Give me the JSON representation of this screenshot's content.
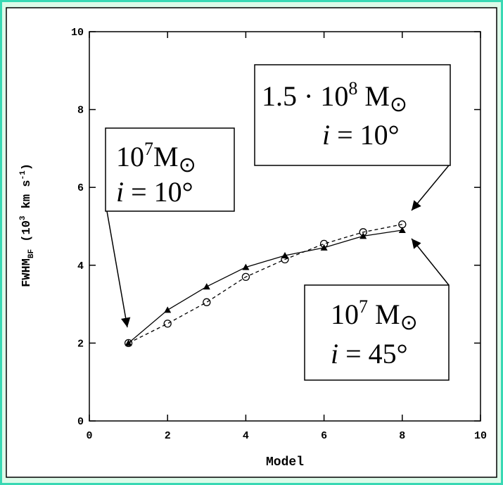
{
  "chart_data": {
    "type": "line",
    "xlabel": "Model",
    "ylabel_parts": [
      "FWHM",
      "BF",
      " (10",
      "3",
      " km s",
      "-1",
      ")"
    ],
    "xlim": [
      0,
      10
    ],
    "ylim": [
      0,
      10
    ],
    "xticks": [
      0,
      2,
      4,
      6,
      8,
      10
    ],
    "yticks": [
      0,
      2,
      4,
      6,
      8,
      10
    ],
    "series": [
      {
        "x": [
          1,
          2,
          3,
          4,
          5,
          6,
          7,
          8
        ],
        "values": [
          2.0,
          2.85,
          3.45,
          3.95,
          4.25,
          4.45,
          4.75,
          4.9
        ],
        "marker": "triangle",
        "dash": false,
        "color": "#000000"
      },
      {
        "x": [
          1,
          2,
          3,
          4,
          5,
          6,
          7,
          8
        ],
        "values": [
          2.0,
          2.5,
          3.05,
          3.7,
          4.15,
          4.55,
          4.85,
          5.05
        ],
        "marker": "circle",
        "dash": true,
        "color": "#000000"
      }
    ],
    "annotations": [
      {
        "lines": [
          [
            "10",
            "7",
            "M",
            "⊙"
          ],
          [
            "i",
            " = 10°"
          ]
        ]
      },
      {
        "lines": [
          [
            "1.5 · 10",
            "8",
            " M",
            "⊙"
          ],
          [
            "i",
            " = 10°"
          ]
        ]
      },
      {
        "lines": [
          [
            "10",
            "7",
            " M",
            "⊙"
          ],
          [
            "i",
            " = 45°"
          ]
        ]
      }
    ]
  }
}
